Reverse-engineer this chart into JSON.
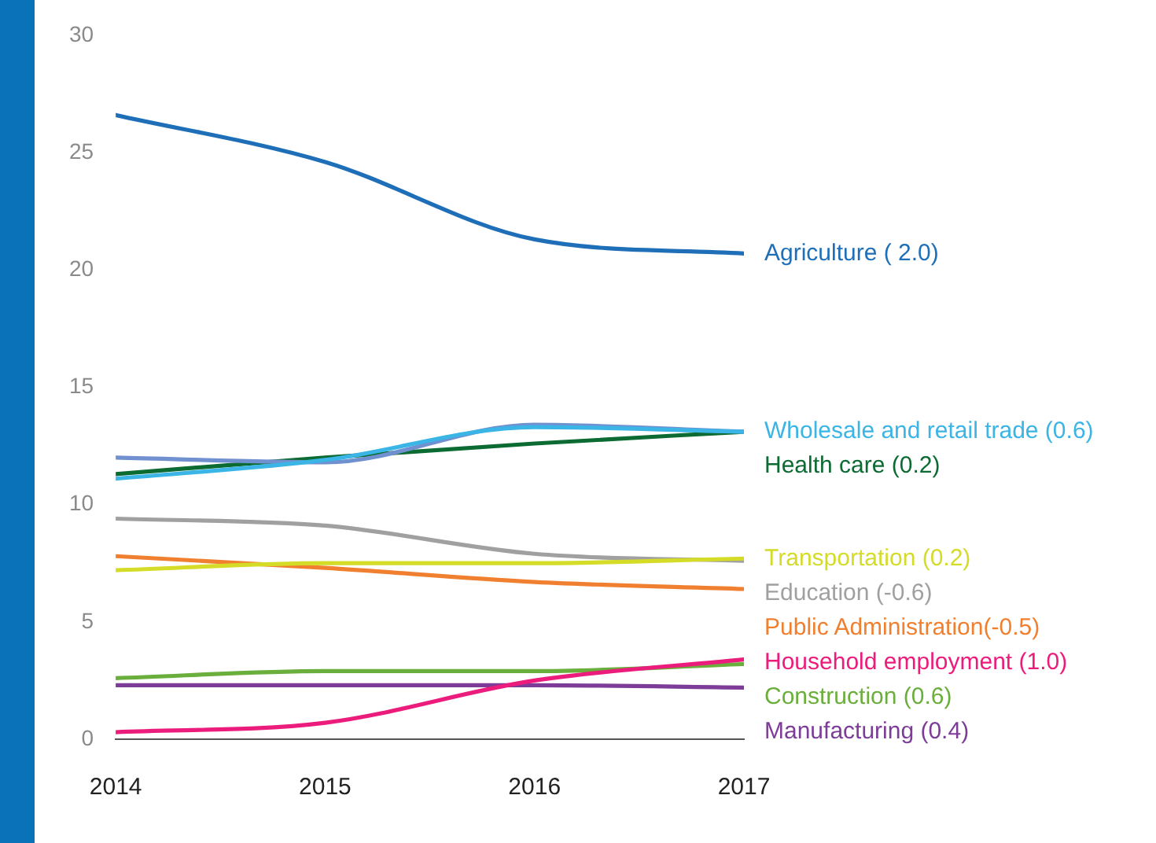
{
  "chart_data": {
    "type": "line",
    "x": [
      2014,
      2015,
      2016,
      2017
    ],
    "xlim": [
      2014,
      2017
    ],
    "xticks": [
      2014,
      2015,
      2016,
      2017
    ],
    "ylim": [
      0,
      30
    ],
    "yticks": [
      0,
      5,
      10,
      15,
      20,
      25,
      30
    ],
    "grid": false,
    "legend": false,
    "marker": "none",
    "line_style": "solid",
    "series": [
      {
        "name": "Agriculture ( 2.0)",
        "color": "#1f6fb8",
        "values": [
          26.6,
          24.6,
          21.3,
          20.7
        ]
      },
      {
        "name": "Wholesale and retail trade (0.6)",
        "color": "#3bb4e6",
        "values": [
          11.1,
          11.9,
          13.3,
          13.1
        ]
      },
      {
        "color": "#7090d0",
        "values": [
          12.0,
          11.8,
          13.4,
          13.1
        ]
      },
      {
        "name": "Health care (0.2)",
        "color": "#0c6b32",
        "values": [
          11.3,
          12.0,
          12.6,
          13.1
        ]
      },
      {
        "name": "Transportation (0.2)",
        "color": "#d4dc28",
        "values": [
          7.2,
          7.5,
          7.5,
          7.7
        ]
      },
      {
        "name": "Education (-0.6)",
        "color": "#a0a0a0",
        "values": [
          9.4,
          9.1,
          7.9,
          7.6
        ]
      },
      {
        "name": "Public Administration(-0.5)",
        "color": "#f08030",
        "values": [
          7.8,
          7.3,
          6.7,
          6.4
        ]
      },
      {
        "name": "Household employment (1.0)",
        "color": "#ec1c7c",
        "values": [
          0.3,
          0.7,
          2.5,
          3.4
        ]
      },
      {
        "name": "Construction (0.6)",
        "color": "#6aae3c",
        "values": [
          2.6,
          2.9,
          2.9,
          3.2
        ]
      },
      {
        "name": "Manufacturing (0.4)",
        "color": "#7d3c98",
        "values": [
          2.3,
          2.3,
          2.3,
          2.2
        ]
      }
    ]
  }
}
